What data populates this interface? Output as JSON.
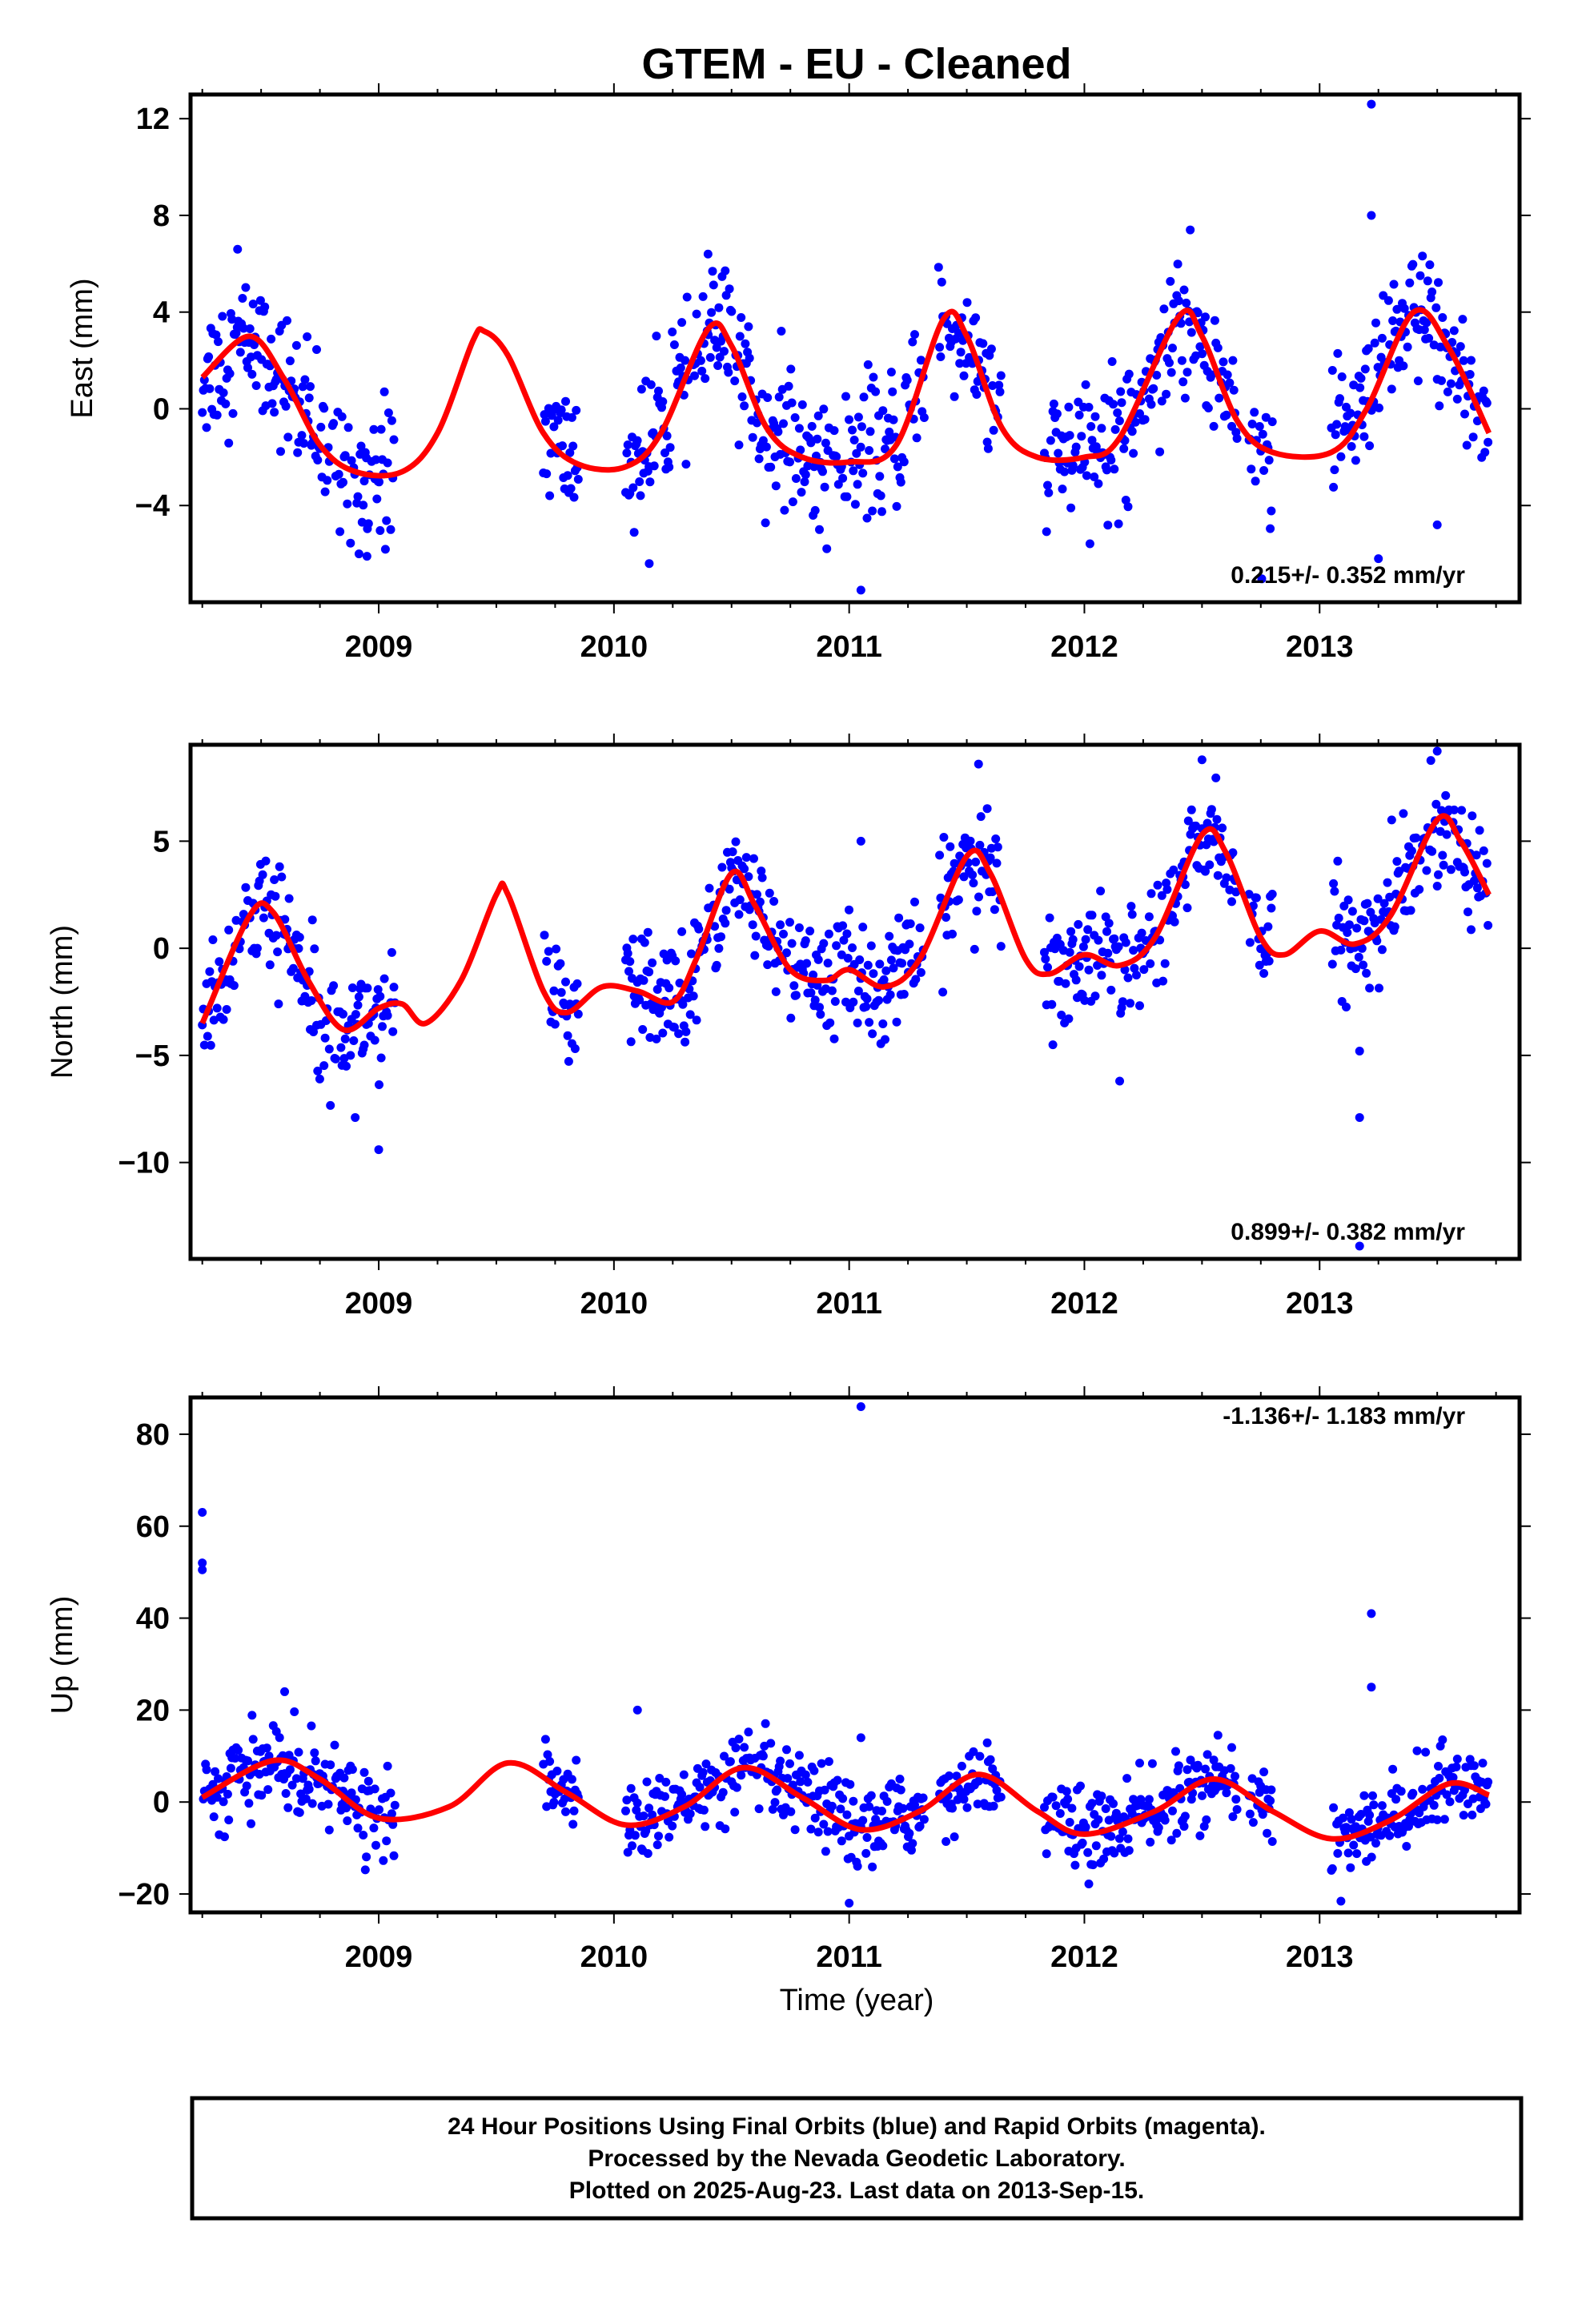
{
  "title": "GTEM  - EU - Cleaned",
  "xlabel": "Time (year)",
  "footer": [
    "24 Hour Positions Using Final Orbits (blue) and Rapid Orbits (magenta).",
    "Processed by the Nevada Geodetic Laboratory.",
    "Plotted on 2025-Aug-23. Last data on 2013-Sep-15."
  ],
  "colors": {
    "data": "#0000ff",
    "model": "#ff0000",
    "frame": "#000000"
  },
  "chart_data": [
    {
      "type": "scatter",
      "ylabel": "East (mm)",
      "rate_text": "0.215+/- 0.352 mm/yr",
      "xlim": [
        2008.2,
        2013.85
      ],
      "ylim": [
        -8,
        13
      ],
      "xticks": [
        2009,
        2010,
        2011,
        2012,
        2013
      ],
      "yticks": [
        -4,
        0,
        4,
        8,
        12
      ],
      "data_segments": [
        [
          2008.25,
          2009.07
        ],
        [
          2009.7,
          2009.85
        ],
        [
          2010.05,
          2011.32
        ],
        [
          2011.38,
          2011.65
        ],
        [
          2011.83,
          2012.65
        ],
        [
          2012.7,
          2012.8
        ],
        [
          2013.05,
          2013.72
        ]
      ],
      "scatter_sd": 1.4,
      "outliers": [
        [
          2013.22,
          12.6
        ],
        [
          2013.22,
          8
        ],
        [
          2012.45,
          7.4
        ],
        [
          2010.4,
          6.4
        ],
        [
          2008.4,
          6.6
        ],
        [
          2010.15,
          -6.4
        ],
        [
          2011.05,
          -7.5
        ],
        [
          2013.25,
          -6.2
        ],
        [
          2013.5,
          -4.8
        ],
        [
          2008.95,
          -6.1
        ]
      ],
      "model": [
        [
          2008.25,
          1.3
        ],
        [
          2008.45,
          3.0
        ],
        [
          2008.6,
          1.2
        ],
        [
          2008.75,
          -1.5
        ],
        [
          2008.9,
          -2.6
        ],
        [
          2009.1,
          -2.6
        ],
        [
          2009.25,
          -1.0
        ],
        [
          2009.4,
          2.8
        ],
        [
          2009.45,
          3.2
        ],
        [
          2009.55,
          2.2
        ],
        [
          2009.7,
          -1.0
        ],
        [
          2009.85,
          -2.3
        ],
        [
          2010.05,
          -2.4
        ],
        [
          2010.2,
          -1.0
        ],
        [
          2010.4,
          3.3
        ],
        [
          2010.5,
          2.6
        ],
        [
          2010.65,
          -0.8
        ],
        [
          2010.8,
          -2.0
        ],
        [
          2011.0,
          -2.2
        ],
        [
          2011.2,
          -1.5
        ],
        [
          2011.4,
          3.7
        ],
        [
          2011.5,
          3.0
        ],
        [
          2011.65,
          -0.8
        ],
        [
          2011.8,
          -2.0
        ],
        [
          2012.0,
          -2.0
        ],
        [
          2012.15,
          -1.2
        ],
        [
          2012.4,
          3.8
        ],
        [
          2012.5,
          3.0
        ],
        [
          2012.65,
          -0.5
        ],
        [
          2012.8,
          -1.8
        ],
        [
          2013.05,
          -1.8
        ],
        [
          2013.2,
          0.0
        ],
        [
          2013.4,
          4.0
        ],
        [
          2013.55,
          2.5
        ],
        [
          2013.72,
          -1.0
        ]
      ]
    },
    {
      "type": "scatter",
      "ylabel": "North (mm)",
      "rate_text": "0.899+/- 0.382 mm/yr",
      "xlim": [
        2008.2,
        2013.85
      ],
      "ylim": [
        -14.5,
        9.5
      ],
      "xticks": [
        2009,
        2010,
        2011,
        2012,
        2013
      ],
      "yticks": [
        -10,
        -5,
        0,
        5
      ],
      "data_segments": [
        [
          2008.25,
          2009.07
        ],
        [
          2009.7,
          2009.85
        ],
        [
          2010.05,
          2011.32
        ],
        [
          2011.38,
          2011.65
        ],
        [
          2011.83,
          2012.65
        ],
        [
          2012.7,
          2012.8
        ],
        [
          2013.05,
          2013.72
        ]
      ],
      "scatter_sd": 1.3,
      "outliers": [
        [
          2013.17,
          -13.9
        ],
        [
          2013.17,
          -7.9
        ],
        [
          2013.17,
          -4.8
        ],
        [
          2009.0,
          -9.4
        ],
        [
          2008.9,
          -7.9
        ],
        [
          2011.55,
          8.6
        ],
        [
          2012.5,
          8.8
        ],
        [
          2013.5,
          9.2
        ],
        [
          2011.05,
          5.0
        ],
        [
          2012.15,
          -6.2
        ]
      ],
      "model": [
        [
          2008.25,
          -3.5
        ],
        [
          2008.45,
          1.5
        ],
        [
          2008.55,
          1.7
        ],
        [
          2008.7,
          -1.5
        ],
        [
          2008.85,
          -3.8
        ],
        [
          2009.0,
          -2.8
        ],
        [
          2009.1,
          -2.6
        ],
        [
          2009.2,
          -3.5
        ],
        [
          2009.35,
          -1.5
        ],
        [
          2009.5,
          2.5
        ],
        [
          2009.55,
          2.5
        ],
        [
          2009.7,
          -2.0
        ],
        [
          2009.8,
          -3.0
        ],
        [
          2009.95,
          -1.8
        ],
        [
          2010.1,
          -2.0
        ],
        [
          2010.25,
          -2.5
        ],
        [
          2010.35,
          -0.5
        ],
        [
          2010.5,
          3.5
        ],
        [
          2010.6,
          2.0
        ],
        [
          2010.75,
          -1.0
        ],
        [
          2010.9,
          -1.5
        ],
        [
          2011.0,
          -1.0
        ],
        [
          2011.15,
          -1.8
        ],
        [
          2011.3,
          -0.5
        ],
        [
          2011.5,
          4.3
        ],
        [
          2011.6,
          3.5
        ],
        [
          2011.75,
          -0.5
        ],
        [
          2011.85,
          -1.2
        ],
        [
          2012.0,
          -0.3
        ],
        [
          2012.15,
          -0.8
        ],
        [
          2012.3,
          0.5
        ],
        [
          2012.5,
          5.3
        ],
        [
          2012.6,
          4.5
        ],
        [
          2012.75,
          0.5
        ],
        [
          2012.85,
          -0.3
        ],
        [
          2013.0,
          0.8
        ],
        [
          2013.15,
          0.2
        ],
        [
          2013.3,
          1.5
        ],
        [
          2013.5,
          6.0
        ],
        [
          2013.6,
          5.0
        ],
        [
          2013.72,
          2.5
        ]
      ]
    },
    {
      "type": "scatter",
      "ylabel": "Up (mm)",
      "rate_text": "-1.136+/- 1.183 mm/yr",
      "xlim": [
        2008.2,
        2013.85
      ],
      "ylim": [
        -24,
        88
      ],
      "xticks": [
        2009,
        2010,
        2011,
        2012,
        2013
      ],
      "yticks": [
        -20,
        0,
        20,
        40,
        60,
        80
      ],
      "data_segments": [
        [
          2008.25,
          2009.07
        ],
        [
          2009.7,
          2009.85
        ],
        [
          2010.05,
          2011.32
        ],
        [
          2011.38,
          2011.65
        ],
        [
          2011.83,
          2012.65
        ],
        [
          2012.7,
          2012.8
        ],
        [
          2013.05,
          2013.72
        ]
      ],
      "scatter_sd": 4.2,
      "outliers": [
        [
          2011.05,
          86
        ],
        [
          2008.25,
          63
        ],
        [
          2008.25,
          52
        ],
        [
          2008.25,
          50.5
        ],
        [
          2013.22,
          41
        ],
        [
          2013.22,
          25
        ],
        [
          2008.6,
          24
        ],
        [
          2011.05,
          14
        ],
        [
          2010.1,
          20
        ],
        [
          2011.0,
          -22
        ]
      ],
      "model": [
        [
          2008.25,
          1.0
        ],
        [
          2008.55,
          9.0
        ],
        [
          2008.75,
          5.0
        ],
        [
          2009.0,
          -3.5
        ],
        [
          2009.3,
          -1.0
        ],
        [
          2009.55,
          8.5
        ],
        [
          2009.8,
          2.0
        ],
        [
          2010.05,
          -5.0
        ],
        [
          2010.3,
          -1.0
        ],
        [
          2010.55,
          7.5
        ],
        [
          2010.8,
          1.0
        ],
        [
          2011.05,
          -6.0
        ],
        [
          2011.3,
          -2.0
        ],
        [
          2011.55,
          6.0
        ],
        [
          2011.8,
          -2.0
        ],
        [
          2012.0,
          -7.0
        ],
        [
          2012.3,
          -2.0
        ],
        [
          2012.55,
          5.0
        ],
        [
          2012.8,
          -2.0
        ],
        [
          2013.05,
          -8.0
        ],
        [
          2013.3,
          -4.0
        ],
        [
          2013.55,
          4.0
        ],
        [
          2013.72,
          1.5
        ]
      ]
    }
  ]
}
